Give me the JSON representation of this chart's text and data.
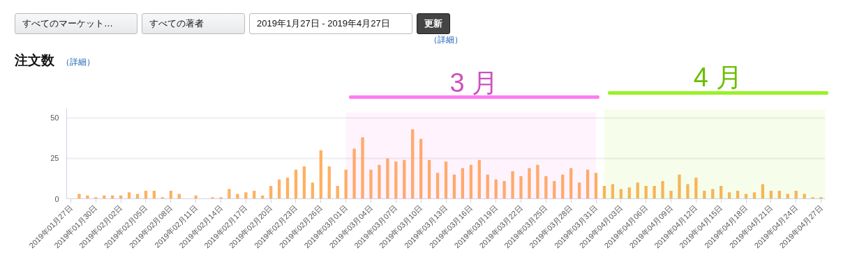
{
  "chart_data": {
    "type": "bar",
    "title": "注文数",
    "annotations": [
      "すべてのマーケット…",
      "すべての著者",
      "2019年1月27日 - 2019年4月27日",
      "更新",
      "（詳細）",
      "（詳細）"
    ],
    "x": [
      "2019-01-27",
      "2019-01-28",
      "2019-01-29",
      "2019-01-30",
      "2019-01-31",
      "2019-02-01",
      "2019-02-02",
      "2019-02-03",
      "2019-02-04",
      "2019-02-05",
      "2019-02-06",
      "2019-02-07",
      "2019-02-08",
      "2019-02-09",
      "2019-02-10",
      "2019-02-11",
      "2019-02-12",
      "2019-02-13",
      "2019-02-14",
      "2019-02-15",
      "2019-02-16",
      "2019-02-17",
      "2019-02-18",
      "2019-02-19",
      "2019-02-20",
      "2019-02-21",
      "2019-02-22",
      "2019-02-23",
      "2019-02-24",
      "2019-02-25",
      "2019-02-26",
      "2019-02-27",
      "2019-02-28",
      "2019-03-01",
      "2019-03-02",
      "2019-03-03",
      "2019-03-04",
      "2019-03-05",
      "2019-03-06",
      "2019-03-07",
      "2019-03-08",
      "2019-03-09",
      "2019-03-10",
      "2019-03-11",
      "2019-03-12",
      "2019-03-13",
      "2019-03-14",
      "2019-03-15",
      "2019-03-16",
      "2019-03-17",
      "2019-03-18",
      "2019-03-19",
      "2019-03-20",
      "2019-03-21",
      "2019-03-22",
      "2019-03-23",
      "2019-03-24",
      "2019-03-25",
      "2019-03-26",
      "2019-03-27",
      "2019-03-28",
      "2019-03-29",
      "2019-03-30",
      "2019-03-31",
      "2019-04-01",
      "2019-04-02",
      "2019-04-03",
      "2019-04-04",
      "2019-04-05",
      "2019-04-06",
      "2019-04-07",
      "2019-04-08",
      "2019-04-09",
      "2019-04-10",
      "2019-04-11",
      "2019-04-12",
      "2019-04-13",
      "2019-04-14",
      "2019-04-15",
      "2019-04-16",
      "2019-04-17",
      "2019-04-18",
      "2019-04-19",
      "2019-04-20",
      "2019-04-21",
      "2019-04-22",
      "2019-04-23",
      "2019-04-24",
      "2019-04-25",
      "2019-04-26",
      "2019-04-27"
    ],
    "values": [
      0,
      3,
      2,
      1,
      2,
      2,
      2,
      4,
      3,
      5,
      5,
      1,
      5,
      3,
      0,
      2,
      0,
      1,
      1,
      6,
      3,
      4,
      5,
      2,
      8,
      12,
      13,
      18,
      20,
      10,
      30,
      20,
      8,
      18,
      31,
      38,
      18,
      21,
      25,
      23,
      24,
      43,
      37,
      24,
      16,
      23,
      15,
      19,
      21,
      24,
      15,
      12,
      11,
      17,
      14,
      19,
      21,
      14,
      11,
      15,
      19,
      10,
      18,
      16,
      8,
      9,
      6,
      7,
      10,
      8,
      8,
      11,
      5,
      15,
      9,
      13,
      5,
      6,
      8,
      4,
      5,
      3,
      4,
      9,
      5,
      5,
      3,
      5,
      3,
      1,
      1
    ],
    "color": "#ffb060",
    "xlim": [
      "2019-01-26T12:00",
      "2019-04-27T12:00"
    ],
    "xticks": [
      {
        "value": "2019-01-27",
        "label": "2019年01月27日"
      },
      {
        "value": "2019-01-30",
        "label": "2019年01月30日"
      },
      {
        "value": "2019-02-02",
        "label": "2019年02月02日"
      },
      {
        "value": "2019-02-05",
        "label": "2019年02月05日"
      },
      {
        "value": "2019-02-08",
        "label": "2019年02月08日"
      },
      {
        "value": "2019-02-11",
        "label": "2019年02月11日"
      },
      {
        "value": "2019-02-14",
        "label": "2019年02月14日"
      },
      {
        "value": "2019-02-17",
        "label": "2019年02月17日"
      },
      {
        "value": "2019-02-20",
        "label": "2019年02月20日"
      },
      {
        "value": "2019-02-23",
        "label": "2019年02月23日"
      },
      {
        "value": "2019-02-26",
        "label": "2019年02月26日"
      },
      {
        "value": "2019-03-01",
        "label": "2019年03月01日"
      },
      {
        "value": "2019-03-04",
        "label": "2019年03月04日"
      },
      {
        "value": "2019-03-07",
        "label": "2019年03月07日"
      },
      {
        "value": "2019-03-10",
        "label": "2019年03月10日"
      },
      {
        "value": "2019-03-13",
        "label": "2019年03月13日"
      },
      {
        "value": "2019-03-16",
        "label": "2019年03月16日"
      },
      {
        "value": "2019-03-19",
        "label": "2019年03月19日"
      },
      {
        "value": "2019-03-22",
        "label": "2019年03月22日"
      },
      {
        "value": "2019-03-25",
        "label": "2019年03月25日"
      },
      {
        "value": "2019-03-28",
        "label": "2019年03月28日"
      },
      {
        "value": "2019-03-31",
        "label": "2019年03月31日"
      },
      {
        "value": "2019-04-03",
        "label": "2019年04月03日"
      },
      {
        "value": "2019-04-06",
        "label": "2019年04月06日"
      },
      {
        "value": "2019-04-09",
        "label": "2019年04月09日"
      },
      {
        "value": "2019-04-12",
        "label": "2019年04月12日"
      },
      {
        "value": "2019-04-15",
        "label": "2019年04月15日"
      },
      {
        "value": "2019-04-18",
        "label": "2019年04月18日"
      },
      {
        "value": "2019-04-21",
        "label": "2019年04月21日"
      },
      {
        "value": "2019-04-24",
        "label": "2019年04月24日"
      },
      {
        "value": "2019-04-27",
        "label": "2019年04月27日"
      }
    ],
    "ylim": [
      0,
      56
    ],
    "yticks": [
      0,
      25,
      50
    ],
    "grid": "y",
    "bands": [
      {
        "axis": "x",
        "from": "2019-03-01",
        "to": "2019-03-31",
        "label": "3 月",
        "color": "#ff66ee"
      },
      {
        "axis": "x",
        "from": "2019-04-01",
        "to": "2019-04-27T12:00",
        "label": "4 月",
        "color": "#88ee00"
      }
    ]
  }
}
